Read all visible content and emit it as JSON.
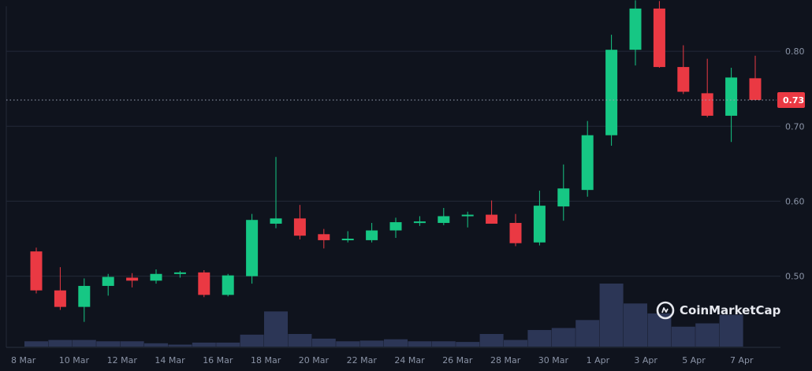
{
  "chart_data": {
    "type": "candlestick",
    "ylim": [
      0.405,
      0.86
    ],
    "y_ticks": [
      0.5,
      0.6,
      0.7,
      0.8
    ],
    "y_tick_labels": [
      "0.50",
      "0.60",
      "0.70",
      "0.80"
    ],
    "x_tick_labels": [
      "8 Mar",
      "10 Mar",
      "12 Mar",
      "14 Mar",
      "16 Mar",
      "18 Mar",
      "20 Mar",
      "22 Mar",
      "24 Mar",
      "26 Mar",
      "28 Mar",
      "30 Mar",
      "1 Apr",
      "3 Apr",
      "5 Apr",
      "7 Apr"
    ],
    "current_price": 0.735,
    "current_price_label": "0.73",
    "grid": true,
    "candles": [
      {
        "o": 0.533,
        "h": 0.538,
        "l": 0.477,
        "c": 0.481,
        "v": 8
      },
      {
        "o": 0.481,
        "h": 0.512,
        "l": 0.455,
        "c": 0.459,
        "v": 10
      },
      {
        "o": 0.459,
        "h": 0.497,
        "l": 0.439,
        "c": 0.487,
        "v": 10
      },
      {
        "o": 0.487,
        "h": 0.503,
        "l": 0.474,
        "c": 0.499,
        "v": 8
      },
      {
        "o": 0.498,
        "h": 0.504,
        "l": 0.485,
        "c": 0.494,
        "v": 8
      },
      {
        "o": 0.494,
        "h": 0.509,
        "l": 0.49,
        "c": 0.503,
        "v": 5
      },
      {
        "o": 0.503,
        "h": 0.507,
        "l": 0.498,
        "c": 0.505,
        "v": 3
      },
      {
        "o": 0.505,
        "h": 0.508,
        "l": 0.472,
        "c": 0.475,
        "v": 6
      },
      {
        "o": 0.475,
        "h": 0.503,
        "l": 0.473,
        "c": 0.501,
        "v": 6
      },
      {
        "o": 0.5,
        "h": 0.583,
        "l": 0.49,
        "c": 0.575,
        "v": 18
      },
      {
        "o": 0.57,
        "h": 0.659,
        "l": 0.564,
        "c": 0.577,
        "v": 53
      },
      {
        "o": 0.577,
        "h": 0.595,
        "l": 0.549,
        "c": 0.554,
        "v": 19
      },
      {
        "o": 0.556,
        "h": 0.563,
        "l": 0.537,
        "c": 0.548,
        "v": 12
      },
      {
        "o": 0.548,
        "h": 0.56,
        "l": 0.545,
        "c": 0.55,
        "v": 8
      },
      {
        "o": 0.548,
        "h": 0.571,
        "l": 0.545,
        "c": 0.561,
        "v": 9
      },
      {
        "o": 0.561,
        "h": 0.578,
        "l": 0.551,
        "c": 0.572,
        "v": 11
      },
      {
        "o": 0.572,
        "h": 0.58,
        "l": 0.567,
        "c": 0.573,
        "v": 8
      },
      {
        "o": 0.571,
        "h": 0.591,
        "l": 0.568,
        "c": 0.58,
        "v": 8
      },
      {
        "o": 0.58,
        "h": 0.586,
        "l": 0.565,
        "c": 0.582,
        "v": 7
      },
      {
        "o": 0.582,
        "h": 0.601,
        "l": 0.57,
        "c": 0.57,
        "v": 19
      },
      {
        "o": 0.571,
        "h": 0.583,
        "l": 0.54,
        "c": 0.544,
        "v": 10
      },
      {
        "o": 0.545,
        "h": 0.614,
        "l": 0.541,
        "c": 0.594,
        "v": 25
      },
      {
        "o": 0.593,
        "h": 0.649,
        "l": 0.574,
        "c": 0.617,
        "v": 28
      },
      {
        "o": 0.615,
        "h": 0.707,
        "l": 0.606,
        "c": 0.688,
        "v": 40
      },
      {
        "o": 0.688,
        "h": 0.822,
        "l": 0.674,
        "c": 0.802,
        "v": 95
      },
      {
        "o": 0.802,
        "h": 0.868,
        "l": 0.781,
        "c": 0.857,
        "v": 65
      },
      {
        "o": 0.857,
        "h": 0.867,
        "l": 0.778,
        "c": 0.779,
        "v": 50
      },
      {
        "o": 0.779,
        "h": 0.808,
        "l": 0.743,
        "c": 0.746,
        "v": 30
      },
      {
        "o": 0.744,
        "h": 0.79,
        "l": 0.712,
        "c": 0.714,
        "v": 35
      },
      {
        "o": 0.714,
        "h": 0.778,
        "l": 0.679,
        "c": 0.765,
        "v": 48
      },
      {
        "o": 0.764,
        "h": 0.794,
        "l": 0.735,
        "c": 0.735,
        "v": 0
      }
    ]
  },
  "colors": {
    "background": "#0f131d",
    "up": "#16c784",
    "down": "#ea3943",
    "volume": "#2c3656",
    "grid": "#232938",
    "axis_text": "#8a93a6",
    "price_tag": "#ea3943"
  },
  "watermark": {
    "text": "CoinMarketCap",
    "icon": "coinmarketcap-logo-icon"
  }
}
